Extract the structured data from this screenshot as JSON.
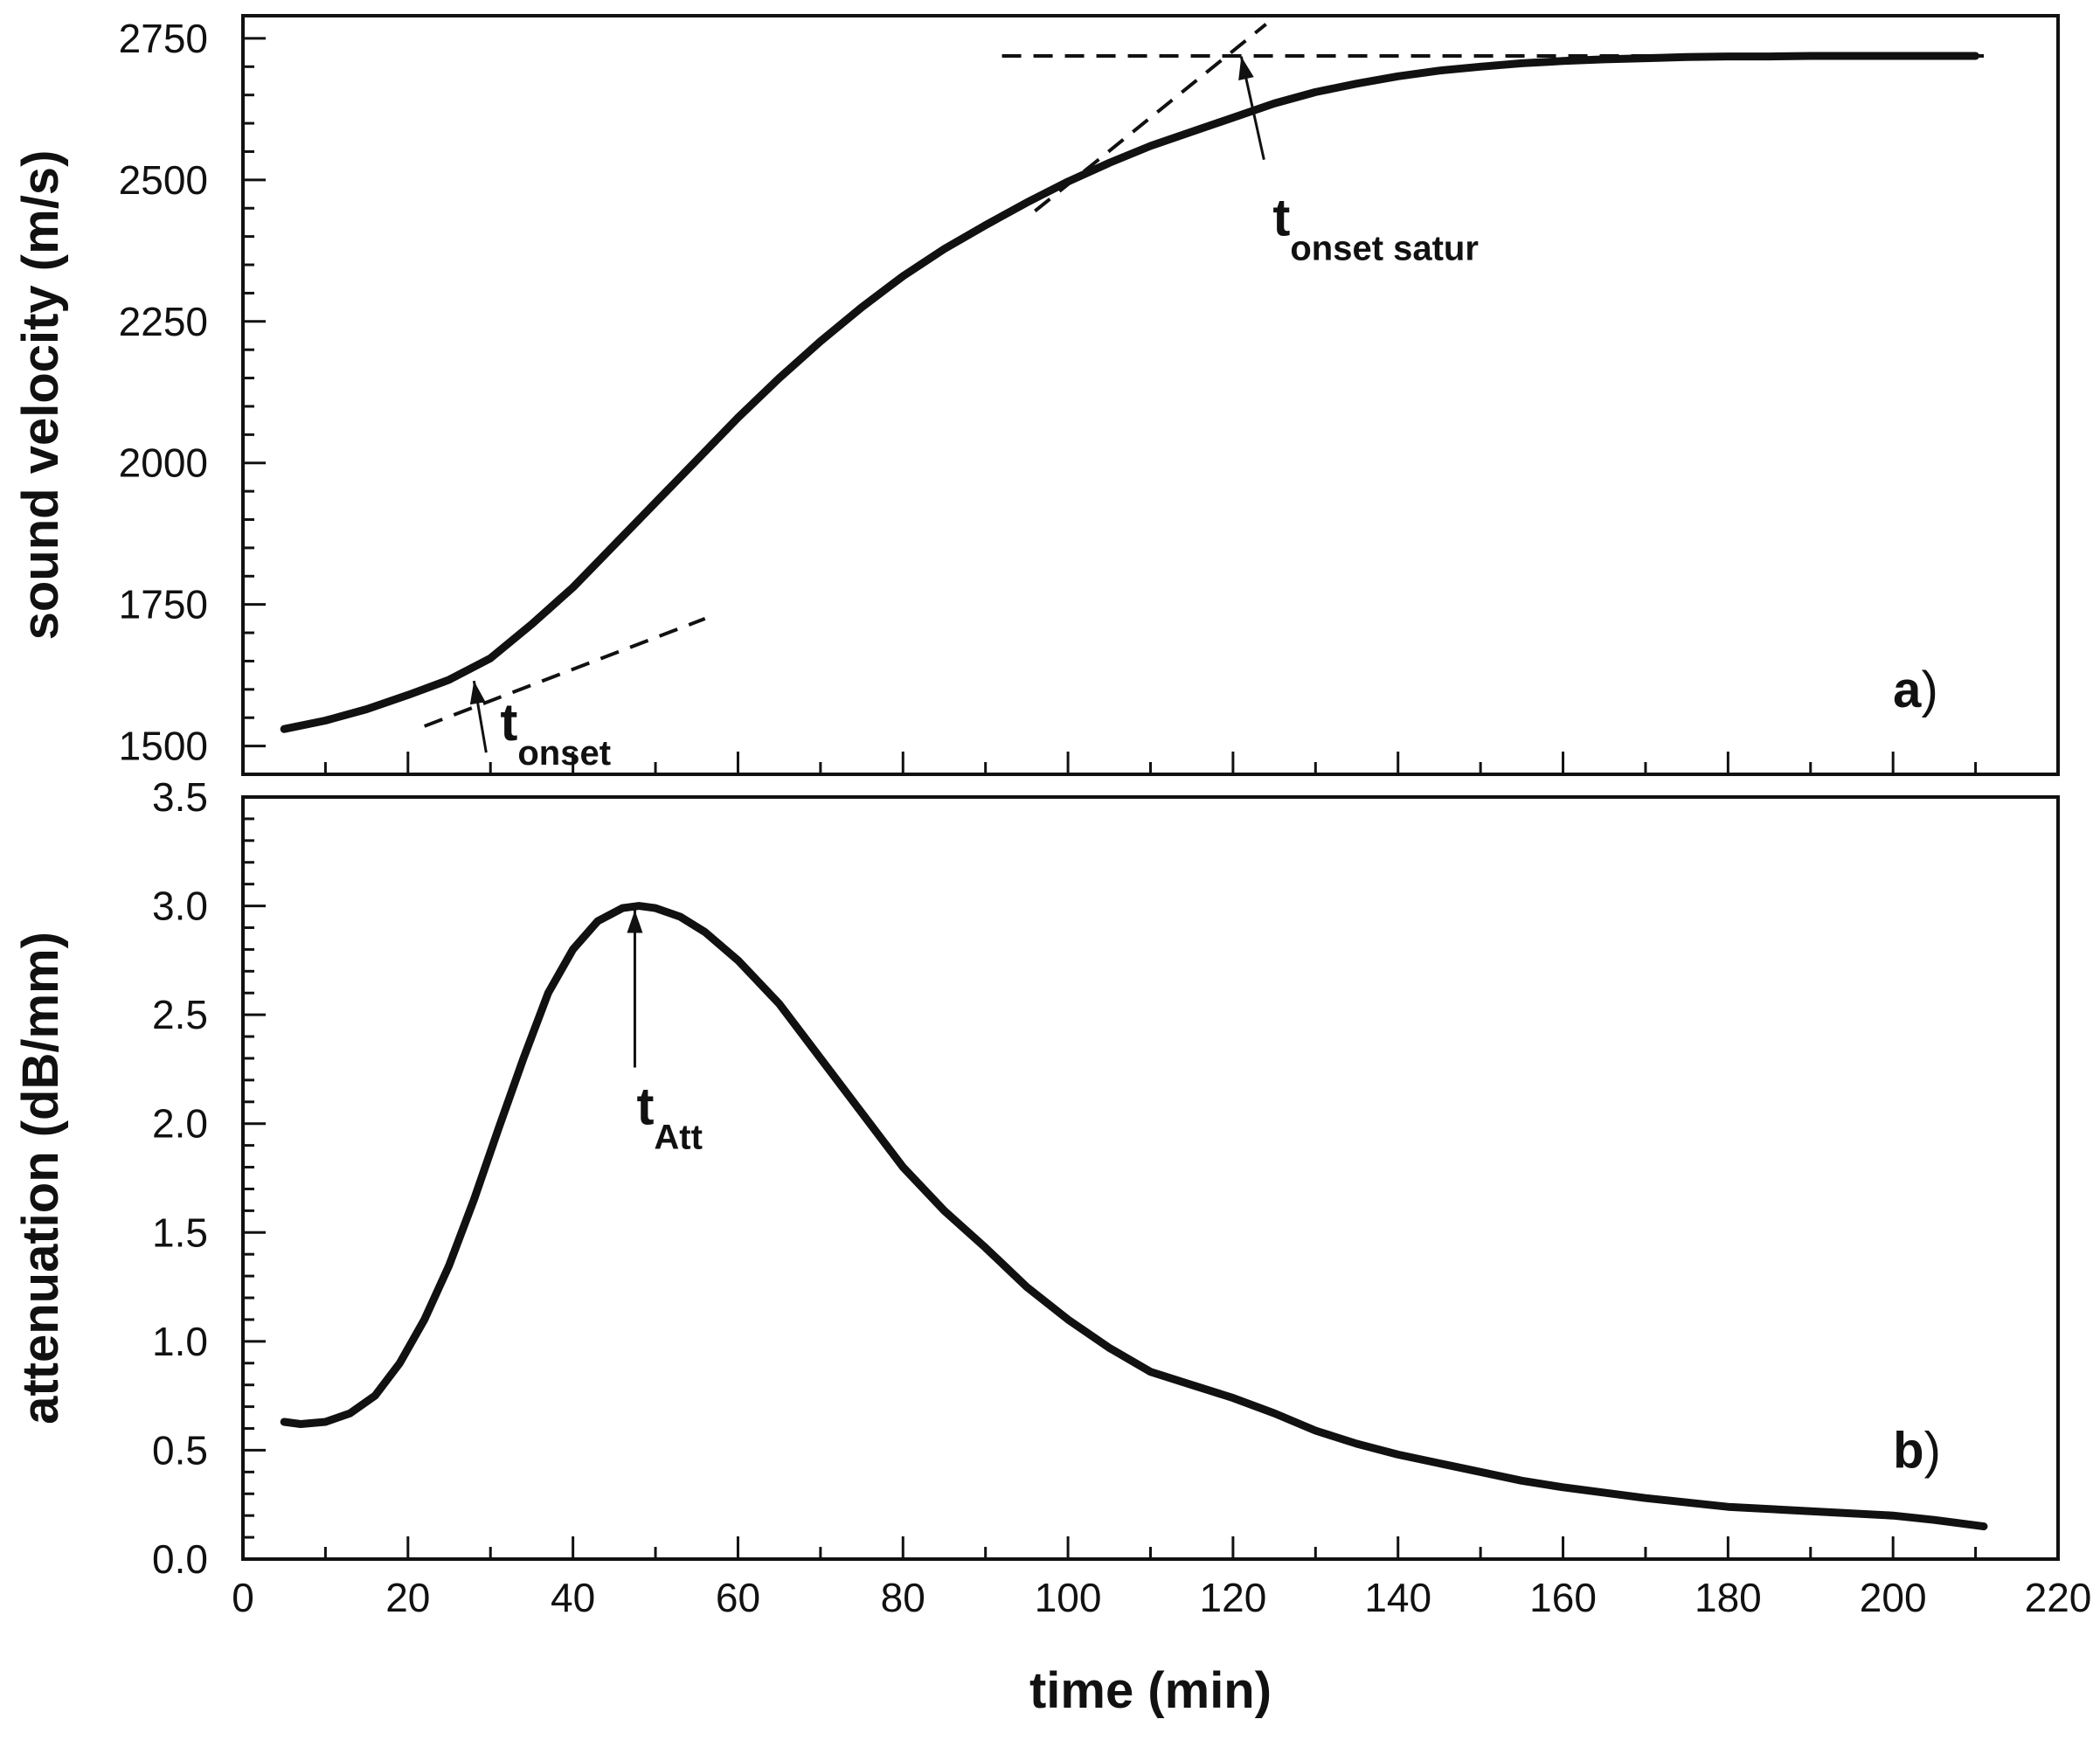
{
  "chart_data": [
    {
      "type": "line",
      "panel_label": "a",
      "panel_label_suffix": ")",
      "xlabel": "time (min)",
      "ylabel": "sound velocity (m/s)",
      "xlim": [
        0,
        220
      ],
      "ylim": [
        1450,
        2790
      ],
      "x_ticks": [
        0,
        20,
        40,
        60,
        80,
        100,
        120,
        140,
        160,
        180,
        200,
        220
      ],
      "y_ticks": [
        1500,
        1750,
        2000,
        2250,
        2500,
        2750
      ],
      "y_tick_labels": [
        "1500",
        "1750",
        "2000",
        "2250",
        "2500",
        "2750"
      ],
      "series": [
        {
          "name": "sound velocity",
          "x": [
            5,
            10,
            15,
            20,
            25,
            30,
            35,
            40,
            45,
            50,
            55,
            60,
            65,
            70,
            75,
            80,
            85,
            90,
            95,
            100,
            105,
            110,
            115,
            120,
            125,
            130,
            135,
            140,
            145,
            150,
            155,
            160,
            165,
            170,
            175,
            180,
            185,
            190,
            195,
            200,
            205,
            210
          ],
          "y": [
            1530,
            1545,
            1565,
            1590,
            1617,
            1655,
            1715,
            1780,
            1855,
            1930,
            2005,
            2080,
            2150,
            2215,
            2275,
            2330,
            2378,
            2420,
            2460,
            2497,
            2530,
            2560,
            2585,
            2610,
            2635,
            2655,
            2670,
            2683,
            2693,
            2700,
            2706,
            2710,
            2713,
            2715,
            2717,
            2718,
            2718,
            2719,
            2719,
            2719,
            2719,
            2719
          ]
        }
      ],
      "tangent_lines": [
        {
          "name": "initial tangent",
          "from": [
            22,
            1535
          ],
          "to": [
            56,
            1725
          ]
        },
        {
          "name": "saturation plateau",
          "from": [
            92,
            2719
          ],
          "to": [
            211,
            2719
          ]
        },
        {
          "name": "growth tangent",
          "from": [
            96,
            2445
          ],
          "to": [
            124,
            2775
          ]
        }
      ],
      "annotations": [
        {
          "main": "t",
          "sub": "onset",
          "arrow_to": [
            28,
            1615
          ]
        },
        {
          "main": "t",
          "sub": "onset satur",
          "arrow_to": [
            121,
            2718
          ]
        }
      ]
    },
    {
      "type": "line",
      "panel_label": "b",
      "panel_label_suffix": ")",
      "xlabel": "time (min)",
      "ylabel": "attenuation (dB/mm)",
      "xlim": [
        0,
        220
      ],
      "ylim": [
        0,
        3.5
      ],
      "x_ticks": [
        0,
        20,
        40,
        60,
        80,
        100,
        120,
        140,
        160,
        180,
        200,
        220
      ],
      "x_tick_labels": [
        "0",
        "20",
        "40",
        "60",
        "80",
        "100",
        "120",
        "140",
        "160",
        "180",
        "200",
        "220"
      ],
      "y_ticks": [
        0,
        0.5,
        1.0,
        1.5,
        2.0,
        2.5,
        3.0,
        3.5
      ],
      "y_tick_labels": [
        "0.0",
        "0.5",
        "1.0",
        "1.5",
        "2.0",
        "2.5",
        "3.0",
        "3.5"
      ],
      "series": [
        {
          "name": "attenuation",
          "x": [
            5,
            7,
            10,
            13,
            16,
            19,
            22,
            25,
            28,
            31,
            34,
            37,
            40,
            43,
            46,
            48,
            50,
            53,
            56,
            60,
            65,
            70,
            75,
            80,
            85,
            90,
            95,
            100,
            105,
            110,
            115,
            120,
            125,
            130,
            135,
            140,
            145,
            150,
            155,
            160,
            170,
            180,
            190,
            200,
            205,
            211
          ],
          "y": [
            0.63,
            0.62,
            0.63,
            0.67,
            0.75,
            0.9,
            1.1,
            1.35,
            1.65,
            1.98,
            2.3,
            2.6,
            2.8,
            2.93,
            2.99,
            3.0,
            2.99,
            2.95,
            2.88,
            2.75,
            2.55,
            2.3,
            2.05,
            1.8,
            1.6,
            1.43,
            1.25,
            1.1,
            0.97,
            0.86,
            0.8,
            0.74,
            0.67,
            0.59,
            0.53,
            0.48,
            0.44,
            0.4,
            0.36,
            0.33,
            0.28,
            0.24,
            0.22,
            0.2,
            0.18,
            0.15
          ]
        }
      ],
      "annotations": [
        {
          "main": "t",
          "sub": "Att",
          "arrow_to": [
            47.5,
            2.98
          ]
        }
      ]
    }
  ]
}
